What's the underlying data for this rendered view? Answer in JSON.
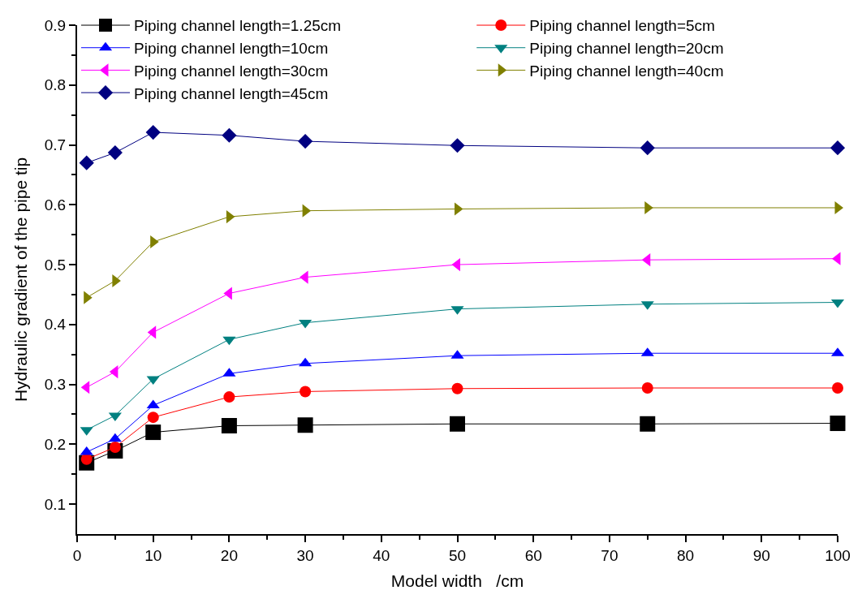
{
  "chart_data": {
    "type": "line",
    "xlabel": "Model width   /cm",
    "ylabel": "Hydraulic gradient of the pipe tip",
    "x": [
      1.25,
      5,
      10,
      20,
      30,
      50,
      75,
      100
    ],
    "xlim": [
      0,
      100
    ],
    "xticks": [
      0,
      10,
      20,
      30,
      40,
      50,
      60,
      70,
      80,
      90,
      100
    ],
    "ylim": [
      0.05,
      0.9
    ],
    "yticks": [
      0.1,
      0.2,
      0.3,
      0.4,
      0.5,
      0.6,
      0.7,
      0.8,
      0.9
    ],
    "legend": "top",
    "line_style": "solid",
    "series": [
      {
        "name": "Piping channel length=1.25cm",
        "color": "#000000",
        "marker": "square",
        "values": [
          0.169,
          0.189,
          0.22,
          0.231,
          0.232,
          0.234,
          0.234,
          0.235
        ]
      },
      {
        "name": "Piping channel length=5cm",
        "color": "#ff0000",
        "marker": "circle",
        "values": [
          0.175,
          0.195,
          0.245,
          0.279,
          0.288,
          0.293,
          0.294,
          0.294
        ]
      },
      {
        "name": "Piping channel length=10cm",
        "color": "#0000ff",
        "marker": "triangle-up",
        "values": [
          0.187,
          0.209,
          0.265,
          0.318,
          0.335,
          0.348,
          0.352,
          0.352
        ]
      },
      {
        "name": "Piping channel length=20cm",
        "color": "#008080",
        "marker": "triangle-down",
        "values": [
          0.224,
          0.248,
          0.309,
          0.375,
          0.403,
          0.426,
          0.434,
          0.437
        ]
      },
      {
        "name": "Piping channel length=30cm",
        "color": "#ff00ff",
        "marker": "triangle-left",
        "values": [
          0.295,
          0.321,
          0.387,
          0.452,
          0.479,
          0.5,
          0.508,
          0.51
        ]
      },
      {
        "name": "Piping channel length=40cm",
        "color": "#808000",
        "marker": "triangle-right",
        "values": [
          0.445,
          0.473,
          0.538,
          0.58,
          0.59,
          0.593,
          0.595,
          0.595
        ]
      },
      {
        "name": "Piping channel length=45cm",
        "color": "#000080",
        "marker": "diamond",
        "values": [
          0.67,
          0.687,
          0.721,
          0.716,
          0.706,
          0.699,
          0.695,
          0.695
        ]
      }
    ]
  }
}
